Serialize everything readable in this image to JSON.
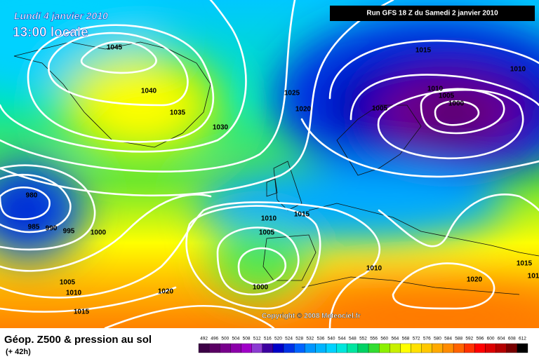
{
  "header": {
    "date": "Lundi 4 janvier 2010",
    "time": "13:00 locale",
    "run": "Run GFS 18 Z du Samedi 2 janvier 2010"
  },
  "isobar_labels": [
    "1045",
    "1040",
    "1035",
    "1030",
    "1025",
    "1020",
    "1015",
    "1010",
    "1010",
    "1005",
    "1000",
    "1005",
    "980",
    "985",
    "990",
    "995",
    "1000",
    "1010",
    "1015",
    "1005",
    "1000",
    "1010",
    "1020",
    "1015",
    "101",
    "1005",
    "1010",
    "1015",
    "1020"
  ],
  "copyright": "Copyright © 2008 Meteociel.fr",
  "legend": {
    "title": "Géop. Z500 & pression au sol",
    "subtitle": "(+ 42h)",
    "values": [
      "492",
      "496",
      "500",
      "504",
      "508",
      "512",
      "516",
      "520",
      "524",
      "528",
      "532",
      "536",
      "540",
      "544",
      "548",
      "552",
      "556",
      "560",
      "564",
      "568",
      "572",
      "576",
      "580",
      "584",
      "588",
      "592",
      "596",
      "600",
      "604",
      "608",
      "612"
    ],
    "colors": [
      "#3c0046",
      "#5a0064",
      "#78008c",
      "#8c00aa",
      "#a000c8",
      "#8c3cd2",
      "#3c00a0",
      "#0000c8",
      "#0032e6",
      "#0064ff",
      "#0096ff",
      "#00b4ff",
      "#00d2ff",
      "#00e6dc",
      "#00e6a0",
      "#00d264",
      "#32dc32",
      "#8cf000",
      "#c8f000",
      "#ffff00",
      "#ffe100",
      "#ffc800",
      "#ffaa00",
      "#ff8c00",
      "#ff6400",
      "#ff3200",
      "#ff0000",
      "#dc0000",
      "#b40000",
      "#780000",
      "#000000"
    ]
  }
}
